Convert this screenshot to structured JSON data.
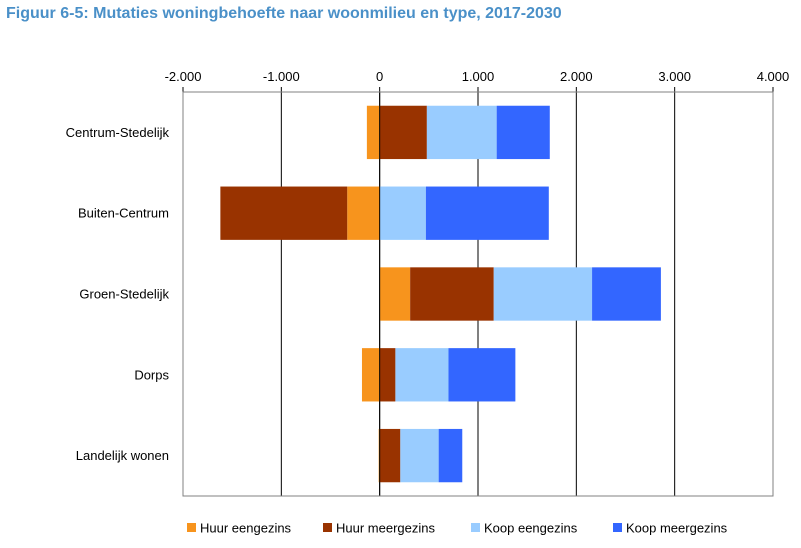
{
  "title": "Figuur 6-5: Mutaties woningbehoefte naar woonmilieu en type, 2017-2030",
  "chart_data": {
    "type": "bar",
    "orientation": "horizontal",
    "stacked": true,
    "categories": [
      "Centrum-Stedelijk",
      "Buiten-Centrum",
      "Groen-Stedelijk",
      "Dorps",
      "Landelijk wonen"
    ],
    "series": [
      {
        "name": "Huur eengezins",
        "color": "#f7941d",
        "values": [
          -130,
          -330,
          310,
          -180,
          -10
        ]
      },
      {
        "name": "Huur meergezins",
        "color": "#993300",
        "values": [
          480,
          -1290,
          850,
          160,
          210
        ]
      },
      {
        "name": "Koop eengezins",
        "color": "#99ccff",
        "values": [
          710,
          470,
          1000,
          540,
          390
        ]
      },
      {
        "name": "Koop meergezins",
        "color": "#3366ff",
        "values": [
          540,
          1250,
          700,
          680,
          240
        ]
      }
    ],
    "xlim": [
      -2000,
      4000
    ],
    "xticks": [
      -2000,
      -1000,
      0,
      1000,
      2000,
      3000,
      4000
    ],
    "xtick_labels": [
      "-2.000",
      "-1.000",
      "0",
      "1.000",
      "2.000",
      "3.000",
      "4.000"
    ],
    "grid": "vertical",
    "axis_position": "top",
    "legend": "bottom"
  }
}
